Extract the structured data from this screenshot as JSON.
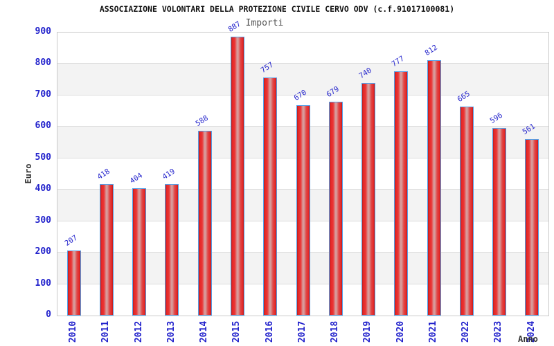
{
  "header": {
    "title": "ASSOCIAZIONE VOLONTARI DELLA PROTEZIONE CIVILE CERVO ODV (c.f.91017100081)",
    "subtitle": "Importi"
  },
  "chart_data": {
    "type": "bar",
    "title": "ASSOCIAZIONE VOLONTARI DELLA PROTEZIONE CIVILE CERVO ODV (c.f.91017100081)",
    "subtitle": "Importi",
    "categories": [
      "2010",
      "2011",
      "2012",
      "2013",
      "2014",
      "2015",
      "2016",
      "2017",
      "2018",
      "2019",
      "2020",
      "2021",
      "2022",
      "2023",
      "2024"
    ],
    "values": [
      207,
      418,
      404,
      419,
      588,
      887,
      757,
      670,
      679,
      740,
      777,
      812,
      665,
      596,
      561
    ],
    "xlabel": "Anno",
    "ylabel": "Euro",
    "ylim": [
      0,
      900
    ],
    "ytick_step": 100,
    "grid": true,
    "legend": false,
    "bar_value_labels_rotated": true,
    "colors": {
      "label_blue": "#2222cc",
      "bar_border": "#55a0e8",
      "bar_red_dark": "#b02020",
      "bar_red_main": "#e62727",
      "bar_highlight": "#d89a9a",
      "band_fill": "#f3f3f3",
      "grid_line": "#dcdcdc",
      "plot_border": "#c9c9c9",
      "axis_title": "#333333",
      "title_color": "#111111",
      "subtitle_color": "#555555"
    }
  }
}
